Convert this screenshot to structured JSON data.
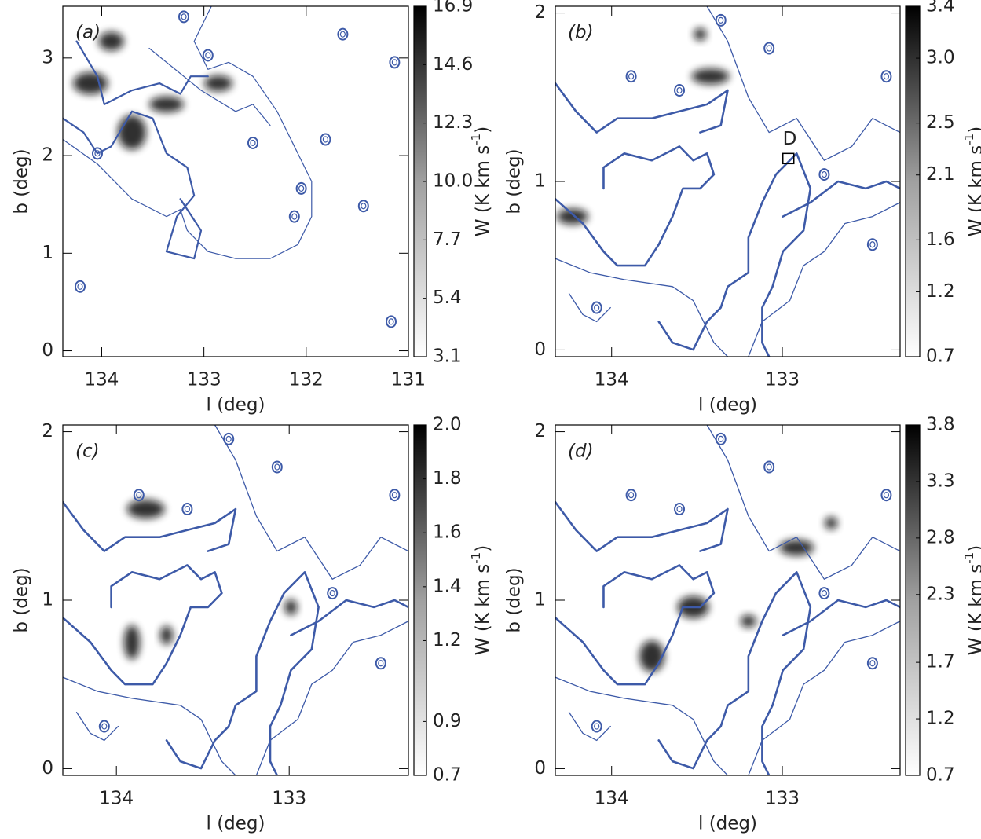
{
  "chart_data": [
    {
      "type": "map",
      "panel_label": "(a)",
      "xlabel": "l (deg)",
      "ylabel": "b (deg)",
      "xlim": [
        134.38,
        131
      ],
      "ylim": [
        -0.06,
        3.53
      ],
      "xticks": [
        134,
        133,
        132,
        131
      ],
      "yticks": [
        0,
        1,
        2,
        3
      ],
      "colorbar": {
        "label": "W (K km s",
        "label_sup": "-1",
        "label_end": ")",
        "lim": [
          3.1,
          16.9
        ],
        "ticks": [
          3.1,
          5.4,
          7.7,
          {
            "value": 10,
            "label": "10.0"
          },
          12.3,
          14.6,
          16.9
        ]
      }
    },
    {
      "type": "map",
      "panel_label": "(b)",
      "xlabel": "l (deg)",
      "ylabel": "b (deg)",
      "xlim": [
        134.33,
        132.31
      ],
      "ylim": [
        -0.04,
        2.04
      ],
      "xticks": [
        134,
        133
      ],
      "yticks": [
        0,
        1,
        2
      ],
      "annotations": [
        {
          "text": "D"
        }
      ],
      "colorbar": {
        "label": "W (K km s",
        "label_sup": "-1",
        "label_end": ")",
        "lim": [
          0.7,
          3.4
        ],
        "ticks": [
          0.7,
          1.2,
          1.6,
          2.1,
          2.5,
          {
            "value": 3,
            "label": "3.0"
          },
          3.4
        ]
      }
    },
    {
      "type": "map",
      "panel_label": "(c)",
      "xlabel": "l (deg)",
      "ylabel": "b (deg)",
      "xlim": [
        134.31,
        132.31
      ],
      "ylim": [
        -0.04,
        2.04
      ],
      "xticks": [
        134,
        133
      ],
      "yticks": [
        0,
        1,
        2
      ],
      "colorbar": {
        "label": "W (K km s",
        "label_sup": "-1",
        "label_end": ")",
        "lim": [
          0.7,
          2.0
        ],
        "ticks": [
          0.7,
          0.9,
          1.2,
          1.4,
          1.6,
          1.8,
          {
            "value": 2,
            "label": "2.0"
          }
        ]
      }
    },
    {
      "type": "map",
      "panel_label": "(d)",
      "xlabel": "l (deg)",
      "ylabel": "b (deg)",
      "xlim": [
        134.33,
        132.31
      ],
      "ylim": [
        -0.04,
        2.04
      ],
      "xticks": [
        134,
        133
      ],
      "yticks": [
        0,
        1,
        2
      ],
      "colorbar": {
        "label": "W (K km s",
        "label_sup": "-1",
        "label_end": ")",
        "lim": [
          0.7,
          3.8
        ],
        "ticks": [
          0.7,
          1.2,
          1.7,
          2.3,
          2.8,
          3.3,
          3.8
        ]
      }
    }
  ]
}
